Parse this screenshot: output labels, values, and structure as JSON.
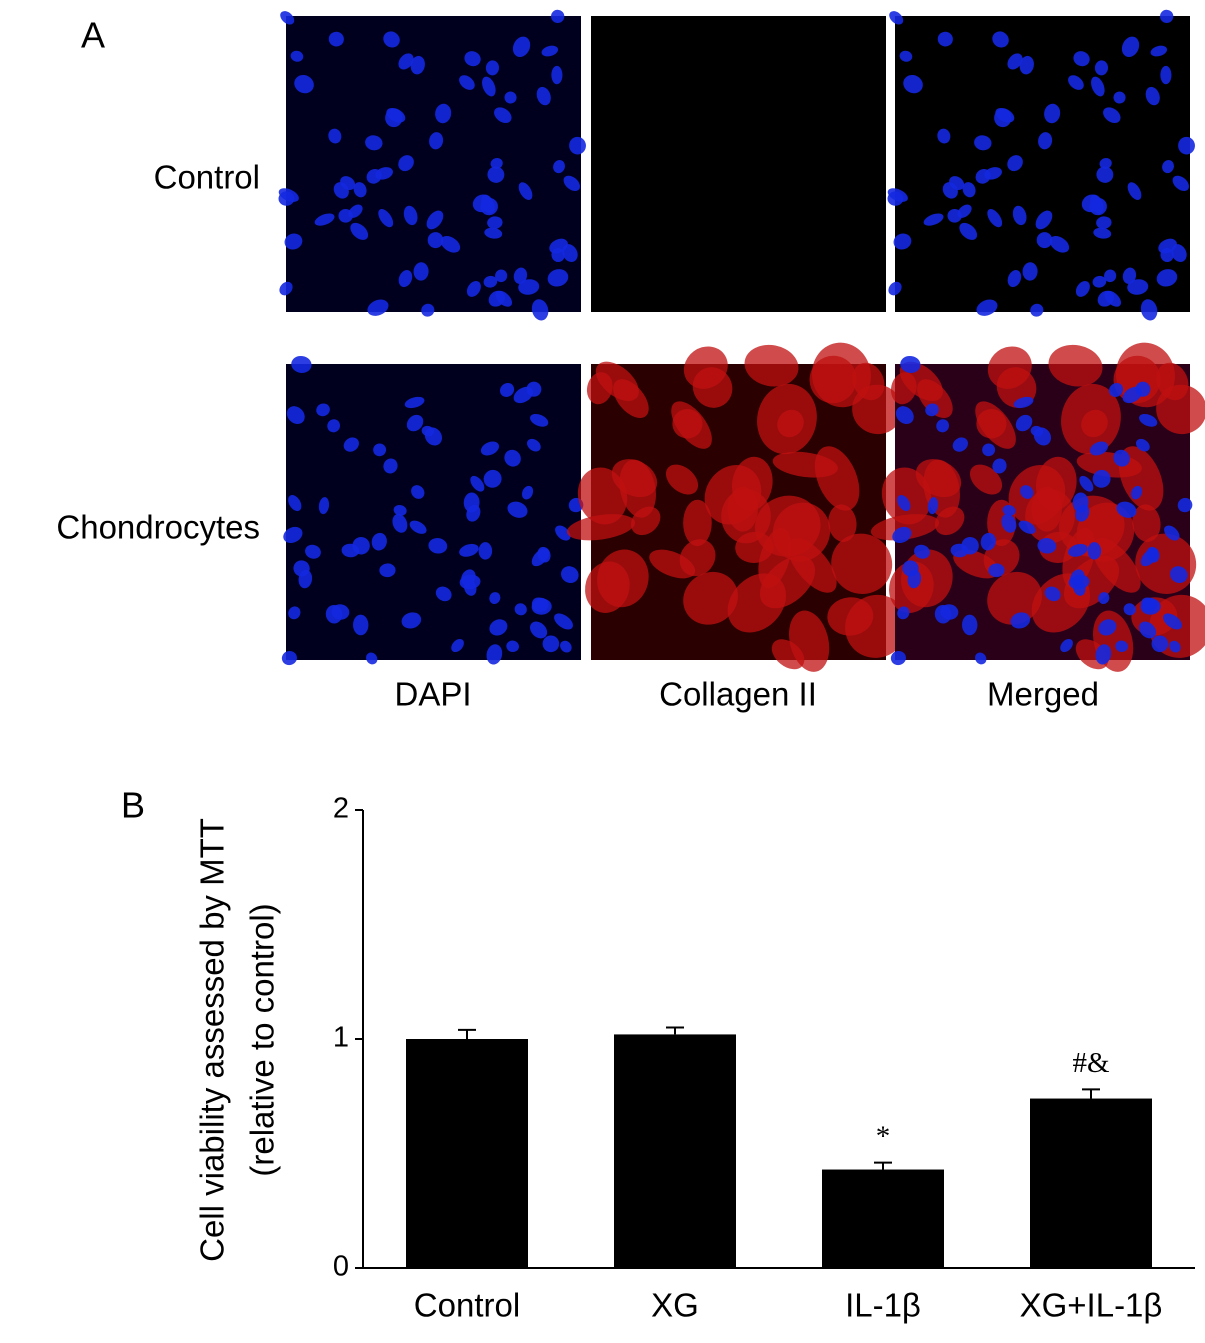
{
  "panel_a": {
    "label": "A",
    "rows": [
      "Control",
      "Chondrocytes"
    ],
    "columns": [
      "DAPI",
      "Collagen II",
      "Merged"
    ]
  },
  "chart_data": {
    "type": "bar",
    "label": "B",
    "ylabel": [
      "Cell viability assessed by MTT",
      "(relative to control)"
    ],
    "categories": [
      "Control",
      "XG",
      "IL-1β",
      "XG+IL-1β"
    ],
    "values": [
      1.0,
      1.02,
      0.43,
      0.74
    ],
    "errors": [
      0.04,
      0.03,
      0.03,
      0.04
    ],
    "bar_labels": [
      null,
      null,
      "*",
      "#&"
    ],
    "color": "#000000",
    "ylim": [
      0,
      2
    ],
    "yticks": [
      0,
      1,
      2
    ],
    "grid": false
  }
}
